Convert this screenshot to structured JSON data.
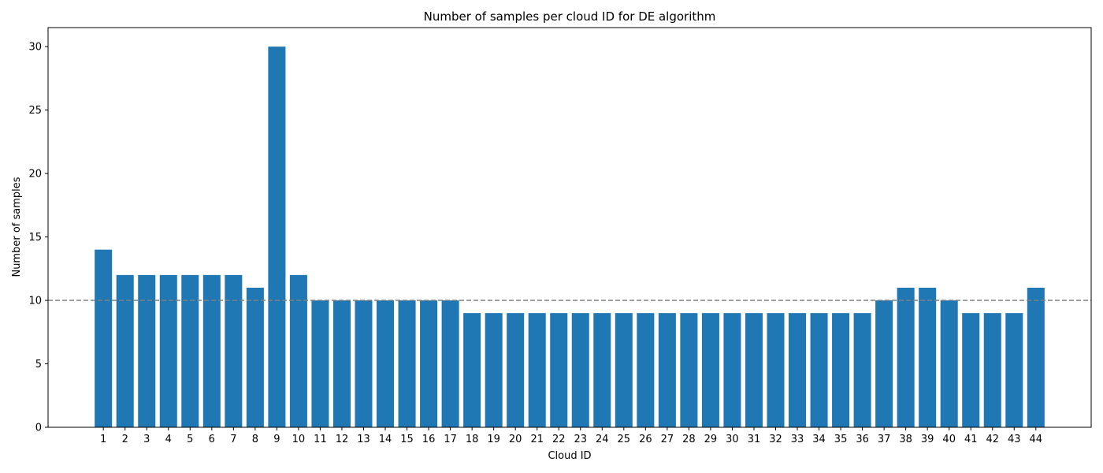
{
  "chart_data": {
    "type": "bar",
    "title": "Number of samples per cloud ID for DE algorithm",
    "xlabel": "Cloud ID",
    "ylabel": "Number of samples",
    "categories": [
      "1",
      "2",
      "3",
      "4",
      "5",
      "6",
      "7",
      "8",
      "9",
      "10",
      "11",
      "12",
      "13",
      "14",
      "15",
      "16",
      "17",
      "18",
      "19",
      "20",
      "21",
      "22",
      "23",
      "24",
      "25",
      "26",
      "27",
      "28",
      "29",
      "30",
      "31",
      "32",
      "33",
      "34",
      "35",
      "36",
      "37",
      "38",
      "39",
      "40",
      "41",
      "42",
      "43",
      "44"
    ],
    "values": [
      14,
      12,
      12,
      12,
      12,
      12,
      12,
      11,
      30,
      12,
      10,
      10,
      10,
      10,
      10,
      10,
      10,
      9,
      9,
      9,
      9,
      9,
      9,
      9,
      9,
      9,
      9,
      9,
      9,
      9,
      9,
      9,
      9,
      9,
      9,
      9,
      10,
      11,
      11,
      10,
      9,
      9,
      9,
      11
    ],
    "ylim": [
      0,
      31.5
    ],
    "yticks": [
      0,
      5,
      10,
      15,
      20,
      25,
      30
    ],
    "reference_line": {
      "y": 10,
      "style": "dashed",
      "color": "#808080"
    },
    "bar_color": "#1f77b4",
    "grid": false,
    "legend": "none"
  }
}
